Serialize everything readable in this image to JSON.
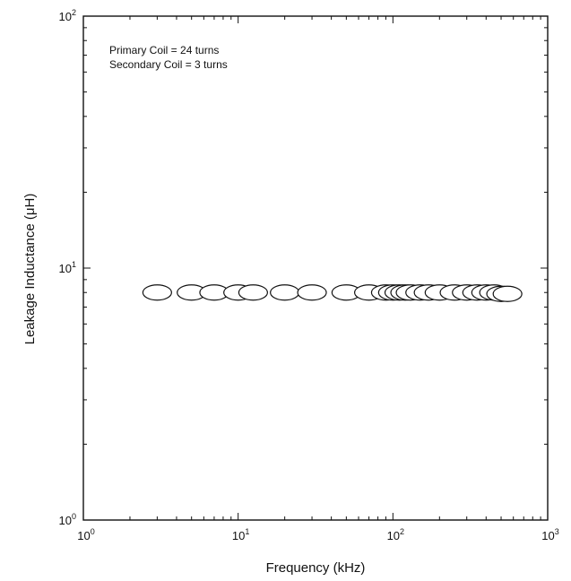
{
  "chart_data": {
    "type": "scatter",
    "xlabel": "Frequency (kHz)",
    "ylabel": "Leakage Inductance (μH)",
    "x_scale": "log",
    "y_scale": "log",
    "xlim": [
      1,
      1000
    ],
    "ylim": [
      1,
      100
    ],
    "grid": false,
    "x_ticks": [
      {
        "base": "10",
        "exp": "0",
        "value": 1
      },
      {
        "base": "10",
        "exp": "1",
        "value": 10
      },
      {
        "base": "10",
        "exp": "2",
        "value": 100
      },
      {
        "base": "10",
        "exp": "3",
        "value": 1000
      }
    ],
    "y_ticks": [
      {
        "base": "10",
        "exp": "0",
        "value": 1
      },
      {
        "base": "10",
        "exp": "1",
        "value": 10
      },
      {
        "base": "10",
        "exp": "2",
        "value": 100
      }
    ],
    "annotations": [
      "Primary Coil = 24 turns",
      "Secondary Coil =  3 turns"
    ],
    "series": [
      {
        "x": [
          3,
          5,
          7,
          10,
          12.5,
          20,
          30,
          50,
          70,
          90,
          100,
          110,
          120,
          130,
          150,
          170,
          200,
          250,
          300,
          350,
          400,
          450,
          500,
          550
        ],
        "y": [
          8,
          8,
          8,
          8,
          8,
          8,
          8,
          8,
          8,
          8,
          8,
          8,
          8,
          8,
          8,
          8,
          8,
          8,
          8,
          8,
          8,
          8,
          7.9,
          7.9
        ]
      }
    ]
  }
}
